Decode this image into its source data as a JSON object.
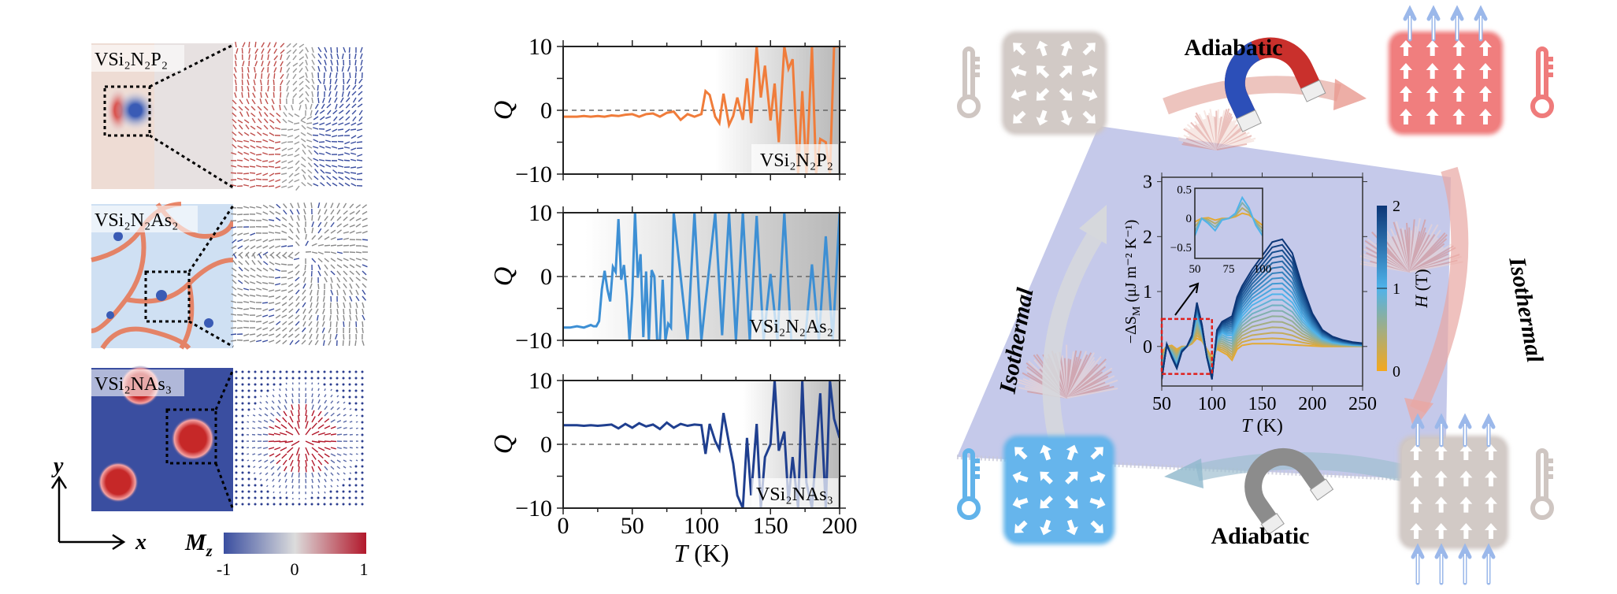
{
  "left_panels": {
    "panels": [
      {
        "label": "VSi₂N₂P₂"
      },
      {
        "label": "VSi₂N₂As₂"
      },
      {
        "label": "VSi₂NAs₃"
      }
    ],
    "axes": {
      "x": "x",
      "y": "y"
    },
    "colorbar": {
      "label_main": "M",
      "label_sub": "z",
      "ticks": [
        "-1",
        "0",
        "1"
      ],
      "low_color": "#3a4ea0",
      "mid_color": "#dcdcdc",
      "high_color": "#b2182b"
    }
  },
  "chart_data": [
    {
      "type": "line",
      "series": [
        {
          "name": "VSi₂N₂P₂",
          "color": "#f07c3a",
          "x": [
            0,
            5,
            10,
            15,
            20,
            25,
            30,
            35,
            40,
            45,
            50,
            55,
            60,
            65,
            70,
            75,
            80,
            85,
            90,
            95,
            100,
            103,
            106,
            110,
            113,
            116,
            120,
            123,
            126,
            130,
            133,
            136,
            140,
            143,
            146,
            150,
            153,
            156,
            160,
            163,
            166,
            170,
            173,
            176,
            180,
            183,
            186,
            190,
            193,
            196,
            200
          ],
          "y": [
            -1,
            -1,
            -1,
            -0.9,
            -1,
            -0.9,
            -1,
            -0.8,
            -0.9,
            -0.7,
            -0.6,
            -1,
            -0.6,
            -0.5,
            -1,
            -0.4,
            -0.2,
            -1.5,
            -0.6,
            -1,
            -0.6,
            3,
            2.4,
            -1,
            -2,
            2.6,
            -2.3,
            -0.9,
            2,
            -1.5,
            5,
            -2,
            10,
            2,
            7,
            -1.6,
            4.2,
            -5,
            10,
            6.5,
            8,
            -10,
            3,
            -10,
            10,
            -10,
            -4.5,
            -5,
            -10,
            10,
            10
          ]
        }
      ],
      "ylabel": "Q",
      "xlim": [
        0,
        200
      ],
      "ylim": [
        -10,
        10
      ],
      "yticks": [
        "10",
        "0",
        "−10"
      ],
      "zero_line": "dashed"
    },
    {
      "type": "line",
      "series": [
        {
          "name": "VSi₂N₂As₂",
          "color": "#3d8fd4",
          "x": [
            0,
            5,
            10,
            15,
            20,
            22,
            24,
            26,
            28,
            30,
            32,
            34,
            36,
            38,
            40,
            42,
            44,
            46,
            48,
            50,
            52,
            54,
            56,
            58,
            60,
            62,
            64,
            66,
            68,
            70,
            72,
            74,
            76,
            78,
            80,
            90,
            95,
            100,
            110,
            115,
            120,
            125,
            130,
            135,
            140,
            145,
            150,
            155,
            160,
            165,
            170,
            175,
            180,
            185,
            190,
            195,
            200
          ],
          "y": [
            -8,
            -8,
            -7.8,
            -8,
            -7.6,
            -7.8,
            -7.8,
            -7,
            -2,
            0.9,
            -2,
            -3.9,
            1.5,
            0.7,
            9,
            -0.5,
            1.8,
            -3,
            -10,
            -3,
            10,
            -0.2,
            3.5,
            -9.5,
            0.8,
            -10,
            1,
            0,
            -10,
            -10,
            -0.5,
            -10,
            -7.4,
            -8,
            10,
            -10,
            10,
            -10,
            10,
            -9.2,
            10,
            -10,
            10,
            -10,
            9.5,
            -10,
            0.4,
            -10,
            10,
            -10,
            -10,
            -10,
            1.9,
            -10,
            6.3,
            -10,
            10
          ]
        }
      ],
      "ylabel": "Q",
      "xlim": [
        0,
        200
      ],
      "ylim": [
        -10,
        10
      ],
      "yticks": [
        "10",
        "0",
        "−10"
      ],
      "zero_line": "dashed"
    },
    {
      "type": "line",
      "series": [
        {
          "name": "VSi₂NAs₃",
          "color": "#1f3f8f",
          "x": [
            0,
            5,
            10,
            15,
            20,
            25,
            30,
            35,
            40,
            45,
            50,
            55,
            60,
            65,
            70,
            75,
            80,
            85,
            90,
            95,
            100,
            103,
            106,
            110,
            113,
            116,
            120,
            123,
            126,
            130,
            133,
            136,
            140,
            143,
            146,
            150,
            153,
            156,
            160,
            163,
            166,
            170,
            173,
            176,
            180,
            183,
            186,
            190,
            193,
            196,
            200
          ],
          "y": [
            3,
            3,
            3,
            2.9,
            3,
            2.9,
            3,
            3.1,
            2.5,
            3.2,
            2.6,
            3.3,
            2.8,
            3.1,
            2.4,
            3.4,
            2.6,
            3.2,
            2.9,
            3.1,
            3,
            -1.5,
            3.2,
            0.5,
            -0.8,
            4.9,
            0.2,
            -3,
            -8,
            -10,
            1,
            -8,
            3.2,
            -10,
            -2,
            0,
            10,
            -1,
            2,
            -9,
            -2,
            -10,
            10,
            -6,
            -10,
            -1,
            8,
            -10,
            10,
            4,
            1
          ]
        }
      ],
      "ylabel": "Q",
      "xlabel_main": "T",
      "xlabel_unit": " (K)",
      "xlim": [
        0,
        200
      ],
      "ylim": [
        -10,
        10
      ],
      "xticks": [
        "0",
        "50",
        "100",
        "150",
        "200"
      ],
      "yticks": [
        "10",
        "0",
        "−10"
      ],
      "zero_line": "dashed"
    },
    {
      "type": "line",
      "title": "",
      "ylabel_main": "−ΔS",
      "ylabel_sub": "M",
      "ylabel_unit": " (μJ m⁻² K⁻¹)",
      "xlabel_main": "T",
      "xlabel_unit": " (K)",
      "xlim": [
        50,
        250
      ],
      "ylim": [
        -0.72,
        3.08
      ],
      "xticks": [
        "50",
        "100",
        "150",
        "200",
        "250"
      ],
      "yticks": [
        "0",
        "1",
        "2",
        "3"
      ],
      "x": [
        50,
        55,
        60,
        65,
        70,
        75,
        80,
        85,
        90,
        95,
        100,
        105,
        110,
        115,
        120,
        125,
        130,
        140,
        150,
        160,
        170,
        180,
        190,
        200,
        210,
        220,
        230,
        240,
        250
      ],
      "series": [
        {
          "H": 0.1,
          "y": [
            -0.1,
            0,
            0.02,
            -0.05,
            0,
            0,
            0.05,
            0.15,
            0.1,
            -0.05,
            -0.2,
            -0.05,
            -0.1,
            -0.15,
            -0.25,
            -0.05,
            0.02,
            0.05,
            0.05,
            0.05,
            0.04,
            0.03,
            0.02,
            0.01,
            0,
            0,
            0,
            0,
            0
          ]
        },
        {
          "H": 1.0,
          "y": [
            -0.5,
            0,
            -0.15,
            -0.35,
            -0.05,
            0,
            0.15,
            0.6,
            0.3,
            -0.2,
            -0.5,
            0.15,
            0.25,
            0.2,
            0.2,
            0.4,
            0.55,
            0.75,
            0.85,
            0.95,
            0.95,
            0.8,
            0.5,
            0.3,
            0.15,
            0.08,
            0.05,
            0.03,
            0.02
          ]
        },
        {
          "H": 2.0,
          "y": [
            -0.6,
            0.05,
            -0.2,
            -0.4,
            -0.1,
            0,
            0.2,
            0.8,
            0.4,
            -0.2,
            -0.6,
            0.3,
            0.45,
            0.5,
            0.55,
            0.9,
            1.1,
            1.4,
            1.65,
            1.9,
            1.95,
            1.7,
            1.1,
            0.6,
            0.3,
            0.18,
            0.12,
            0.08,
            0.06
          ]
        }
      ],
      "inset": {
        "xlim": [
          50,
          100
        ],
        "ylim": [
          -0.69,
          0.52
        ],
        "xticks": [
          "50",
          "75",
          "100"
        ],
        "yticks": [
          "0.5",
          "0",
          "−0.5"
        ]
      },
      "colorbar": {
        "label_main": "H",
        "label_unit": " (T)",
        "ticks": [
          "0",
          "1",
          "2"
        ],
        "low_color": "#f4a81d",
        "mid_color": "#4fb3ea",
        "high_color": "#0c3677"
      }
    }
  ],
  "cycle": {
    "top_label": "Adiabatic",
    "bottom_label": "Adiabatic",
    "left_label": "Isothermal",
    "right_label": "Isothermal",
    "icons": [
      "thermometer-icon",
      "magnet-icon",
      "arrow-icon"
    ],
    "colors": {
      "hot": "#ef7b7b",
      "cold": "#62b3ea",
      "neutral": "#cfc6c2",
      "plane": "#c5c9ea"
    }
  }
}
